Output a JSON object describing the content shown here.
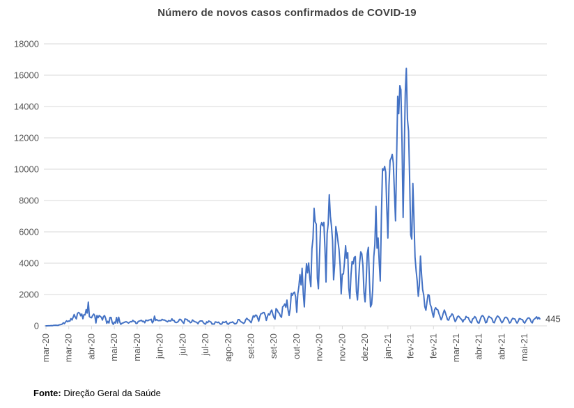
{
  "title": "Número de novos casos confirmados de COVID-19",
  "source": {
    "label": "Fonte:",
    "text": "Direção Geral da Saúde"
  },
  "chart_data": {
    "type": "line",
    "title": "Número de novos casos confirmados de COVID-19",
    "xlabel": "",
    "ylabel": "",
    "ylim": [
      0,
      18000
    ],
    "y_tick_step": 2000,
    "grid": "horizontal-only",
    "legend": "none",
    "line_color": "#4472C4",
    "gridline_color": "#D9D9D9",
    "axis_label_color": "#595959",
    "title_color": "#3f3f3f",
    "end_label": "445",
    "end_label_color": "#404040",
    "x_tick_every_n_points": 21,
    "x_tick_labels": [
      "mar-20",
      "mar-20",
      "abr-20",
      "mai-20",
      "mai-20",
      "jun-20",
      "jul-20",
      "jul-20",
      "ago-20",
      "set-20",
      "set-20",
      "out-20",
      "nov-20",
      "nov-20",
      "dez-20",
      "jan-21",
      "fev-21",
      "fev-21",
      "mar-21",
      "abr-21",
      "abr-21",
      "mai-21"
    ],
    "values": [
      2,
      2,
      3,
      4,
      9,
      17,
      9,
      29,
      30,
      41,
      34,
      26,
      57,
      76,
      86,
      117,
      194,
      143,
      235,
      320,
      260,
      310,
      302,
      460,
      375,
      549,
      724,
      549,
      446,
      792,
      852,
      808,
      638,
      754,
      452,
      712,
      699,
      1035,
      815,
      1516,
      598,
      535,
      514,
      663,
      750,
      643,
      181,
      663,
      521,
      657,
      603,
      544,
      371,
      595,
      655,
      472,
      163,
      295,
      183,
      540,
      533,
      203,
      92,
      242,
      178,
      533,
      183,
      553,
      236,
      98,
      165,
      187,
      219,
      252,
      264,
      223,
      173,
      226,
      271,
      252,
      350,
      288,
      271,
      152,
      165,
      285,
      304,
      331,
      350,
      272,
      297,
      195,
      366,
      338,
      331,
      377,
      382,
      421,
      192,
      303,
      622,
      346,
      403,
      342,
      329,
      346,
      336,
      417,
      375,
      377,
      336,
      292,
      259,
      336,
      310,
      311,
      451,
      342,
      341,
      229,
      210,
      229,
      287,
      418,
      413,
      328,
      232,
      156,
      443,
      418,
      403,
      312,
      305,
      198,
      233,
      375,
      310,
      270,
      246,
      220,
      135,
      252,
      312,
      313,
      311,
      209,
      135,
      106,
      252,
      203,
      313,
      274,
      238,
      112,
      120,
      106,
      252,
      241,
      204,
      239,
      152,
      101,
      118,
      252,
      215,
      234,
      288,
      132,
      102,
      172,
      219,
      217,
      253,
      182,
      124,
      139,
      209,
      399,
      401,
      296,
      244,
      209,
      157,
      208,
      394,
      486,
      406,
      370,
      291,
      198,
      425,
      646,
      566,
      686,
      673,
      495,
      300,
      594,
      770,
      780,
      850,
      849,
      673,
      346,
      602,
      765,
      691,
      899,
      1007,
      738,
      543,
      427,
      1102,
      1012,
      854,
      794,
      621,
      548,
      1208,
      1278,
      1394,
      1181,
      1646,
      1012,
      661,
      1090,
      2072,
      1949,
      2101,
      2153,
      1856,
      863,
      2027,
      2535,
      3270,
      2608,
      3669,
      2115,
      1207,
      2899,
      3960,
      3389,
      4007,
      3062,
      2506,
      4935,
      5550,
      7497,
      6640,
      6494,
      3062,
      2371,
      4452,
      6371,
      6587,
      6383,
      6602,
      4962,
      2798,
      5891,
      6500,
      8371,
      6994,
      6383,
      5444,
      2944,
      3919,
      6335,
      5938,
      5389,
      4868,
      3834,
      2044,
      3306,
      3306,
      4044,
      5114,
      4320,
      4671,
      2408,
      1741,
      3269,
      4097,
      3962,
      4368,
      4424,
      2194,
      1653,
      2877,
      4038,
      4720,
      4602,
      3846,
      2099,
      1531,
      2855,
      4602,
      5010,
      2846,
      1214,
      1376,
      2289,
      4413,
      5179,
      7627,
      4956,
      5604,
      4045,
      2856,
      6923,
      10027,
      9927,
      10176,
      9811,
      7502,
      5604,
      8972,
      10556,
      10698,
      10947,
      10385,
      8535,
      6702,
      10455,
      14647,
      13544,
      15333,
      15073,
      11721,
      6923,
      10765,
      14887,
      16432,
      13200,
      12435,
      9498,
      5805,
      5540,
      9083,
      6916,
      4387,
      3508,
      2856,
      1890,
      2583,
      4452,
      3258,
      2324,
      1959,
      1234,
      996,
      1502,
      2002,
      1944,
      1370,
      1186,
      816,
      549,
      1032,
      1160,
      1047,
      1027,
      788,
      590,
      385,
      549,
      810,
      1007,
      826,
      604,
      385,
      365,
      575,
      627,
      766,
      698,
      456,
      265,
      389,
      577,
      627,
      555,
      459,
      407,
      246,
      389,
      420,
      601,
      532,
      528,
      368,
      246,
      191,
      436,
      475,
      592,
      522,
      324,
      196,
      176,
      395,
      586,
      656,
      606,
      453,
      196,
      222,
      477,
      605,
      551,
      516,
      434,
      232,
      196,
      379,
      540,
      633,
      576,
      487,
      326,
      196,
      274,
      427,
      536,
      552,
      483,
      350,
      180,
      219,
      385,
      480,
      454,
      436,
      282,
      175,
      284,
      462,
      449,
      409,
      391,
      243,
      173,
      294,
      417,
      500,
      512,
      425,
      253,
      190,
      379,
      435,
      498,
      577,
      441,
      541,
      445
    ]
  }
}
